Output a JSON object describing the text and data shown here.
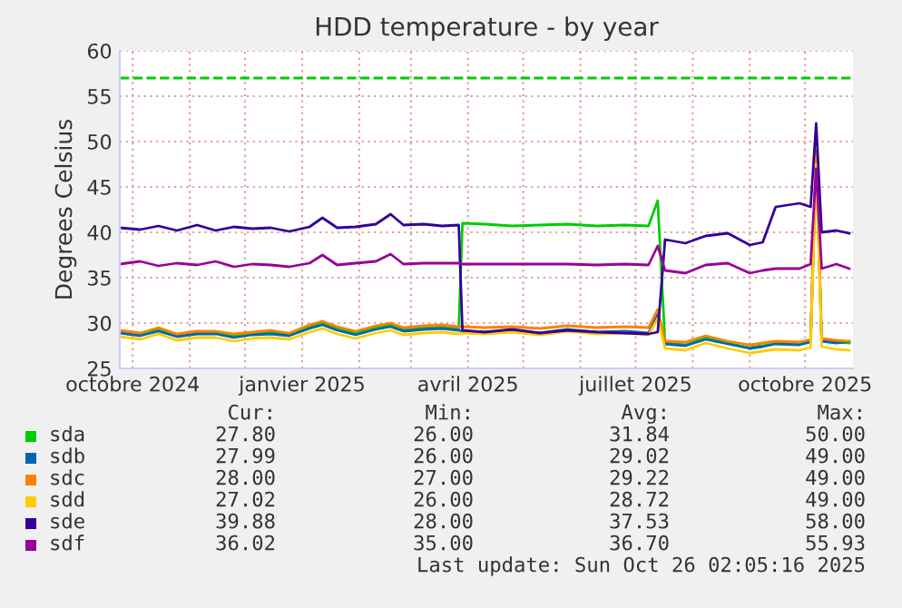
{
  "chart_data": {
    "type": "line",
    "title": "HDD temperature - by year",
    "ylabel": "Degrees Celsius",
    "x": [
      "2024-09-24",
      "2024-10-05",
      "2024-10-15",
      "2024-10-25",
      "2024-11-05",
      "2024-11-15",
      "2024-11-25",
      "2024-12-05",
      "2024-12-15",
      "2024-12-25",
      "2025-01-05",
      "2025-01-12",
      "2025-01-20",
      "2025-01-30",
      "2025-02-10",
      "2025-02-18",
      "2025-02-25",
      "2025-03-08",
      "2025-03-18",
      "2025-03-27",
      "2025-03-29",
      "2025-04-10",
      "2025-04-25",
      "2025-05-10",
      "2025-05-25",
      "2025-06-10",
      "2025-06-25",
      "2025-07-08",
      "2025-07-13",
      "2025-07-17",
      "2025-07-28",
      "2025-08-08",
      "2025-08-20",
      "2025-09-01",
      "2025-09-08",
      "2025-09-15",
      "2025-09-28",
      "2025-10-04",
      "2025-10-07",
      "2025-10-10",
      "2025-10-18",
      "2025-10-25"
    ],
    "series": [
      {
        "name": "sda",
        "color": "#00cc00",
        "values": [
          29.0,
          28.8,
          29.3,
          28.7,
          28.9,
          29.0,
          28.6,
          28.9,
          29.0,
          28.8,
          29.6,
          30.0,
          29.4,
          28.9,
          29.5,
          29.8,
          29.3,
          29.5,
          29.6,
          29.4,
          41.0,
          40.9,
          40.7,
          40.8,
          40.9,
          40.7,
          40.8,
          40.7,
          43.5,
          27.8,
          27.6,
          28.4,
          27.8,
          27.3,
          27.5,
          27.8,
          27.7,
          28.0,
          49.0,
          28.0,
          27.9,
          27.8
        ]
      },
      {
        "name": "sdb",
        "color": "#0066b3",
        "values": [
          28.9,
          28.6,
          29.1,
          28.5,
          28.8,
          28.8,
          28.4,
          28.7,
          28.8,
          28.6,
          29.4,
          29.8,
          29.2,
          28.7,
          29.3,
          29.6,
          29.1,
          29.3,
          29.4,
          29.2,
          29.1,
          29.0,
          29.2,
          28.9,
          29.3,
          29.0,
          29.1,
          28.9,
          31.0,
          27.7,
          27.5,
          28.2,
          27.7,
          27.2,
          27.4,
          27.7,
          27.6,
          27.9,
          48.0,
          28.0,
          27.8,
          28.0
        ]
      },
      {
        "name": "sdc",
        "color": "#ff8000",
        "values": [
          29.2,
          28.9,
          29.5,
          28.8,
          29.1,
          29.1,
          28.8,
          29.0,
          29.2,
          28.9,
          29.8,
          30.2,
          29.6,
          29.1,
          29.7,
          30.0,
          29.5,
          29.7,
          29.8,
          29.6,
          29.6,
          29.5,
          29.6,
          29.4,
          29.7,
          29.5,
          29.6,
          29.5,
          31.5,
          28.0,
          27.9,
          28.6,
          28.0,
          27.6,
          27.8,
          28.0,
          27.9,
          28.2,
          48.5,
          28.3,
          28.1,
          28.0
        ]
      },
      {
        "name": "sdd",
        "color": "#ffcc00",
        "values": [
          28.5,
          28.2,
          28.8,
          28.1,
          28.4,
          28.4,
          28.0,
          28.3,
          28.4,
          28.2,
          29.0,
          29.4,
          28.8,
          28.3,
          28.9,
          29.2,
          28.7,
          28.9,
          29.0,
          28.8,
          28.9,
          28.8,
          29.0,
          28.7,
          29.1,
          28.8,
          28.9,
          28.7,
          30.5,
          27.2,
          27.0,
          27.8,
          27.2,
          26.7,
          26.9,
          27.1,
          27.0,
          27.3,
          47.5,
          27.4,
          27.1,
          27.0
        ]
      },
      {
        "name": "sde",
        "color": "#330099",
        "values": [
          40.5,
          40.3,
          40.7,
          40.2,
          40.8,
          40.2,
          40.6,
          40.4,
          40.5,
          40.1,
          40.6,
          41.6,
          40.5,
          40.6,
          40.9,
          42.0,
          40.8,
          40.9,
          40.7,
          40.8,
          29.2,
          29.0,
          29.3,
          28.9,
          29.2,
          29.0,
          28.9,
          28.8,
          29.0,
          39.2,
          38.8,
          39.6,
          39.9,
          38.6,
          38.9,
          42.8,
          43.2,
          42.8,
          52.0,
          40.0,
          40.2,
          39.9
        ]
      },
      {
        "name": "sdf",
        "color": "#990099",
        "values": [
          36.5,
          36.8,
          36.3,
          36.6,
          36.4,
          36.8,
          36.2,
          36.5,
          36.4,
          36.2,
          36.6,
          37.5,
          36.4,
          36.6,
          36.8,
          37.6,
          36.5,
          36.6,
          36.6,
          36.6,
          36.5,
          36.5,
          36.5,
          36.5,
          36.5,
          36.4,
          36.5,
          36.4,
          38.5,
          35.8,
          35.5,
          36.4,
          36.6,
          35.5,
          35.8,
          36.0,
          36.0,
          36.5,
          47.0,
          36.0,
          36.5,
          36.0
        ]
      }
    ],
    "xlim": [
      "2024-09-24",
      "2025-10-27"
    ],
    "xticks": [
      {
        "value": "2024-10-01",
        "label": "octobre 2024"
      },
      {
        "value": "2024-11-01",
        "label": null
      },
      {
        "value": "2024-12-01",
        "label": null
      },
      {
        "value": "2025-01-01",
        "label": "janvier 2025"
      },
      {
        "value": "2025-02-01",
        "label": null
      },
      {
        "value": "2025-03-01",
        "label": null
      },
      {
        "value": "2025-04-01",
        "label": "avril 2025"
      },
      {
        "value": "2025-05-01",
        "label": null
      },
      {
        "value": "2025-06-01",
        "label": null
      },
      {
        "value": "2025-07-01",
        "label": "juillet 2025"
      },
      {
        "value": "2025-08-01",
        "label": null
      },
      {
        "value": "2025-09-01",
        "label": null
      },
      {
        "value": "2025-10-01",
        "label": "octobre 2025"
      }
    ],
    "ylim": [
      25,
      60
    ],
    "yticks": [
      25,
      30,
      35,
      40,
      45,
      50,
      55,
      60
    ],
    "grid": true,
    "legend": "bottom",
    "marker": "none",
    "line_style": "solid",
    "ref_lines": [
      {
        "axis": "y",
        "value": 57,
        "color": "#00cc00",
        "line_style": "dashed"
      }
    ],
    "annotations": [
      "Cur:",
      "Min:",
      "Avg:",
      "Max:",
      "27.80",
      "26.00",
      "31.84",
      "50.00",
      "27.99",
      "26.00",
      "29.02",
      "49.00",
      "28.00",
      "27.00",
      "29.22",
      "49.00",
      "27.02",
      "26.00",
      "28.72",
      "49.00",
      "39.88",
      "28.00",
      "37.53",
      "58.00",
      "36.02",
      "35.00",
      "36.70",
      "55.93",
      "Last update: Sun Oct 26 02:05:16 2025"
    ]
  }
}
